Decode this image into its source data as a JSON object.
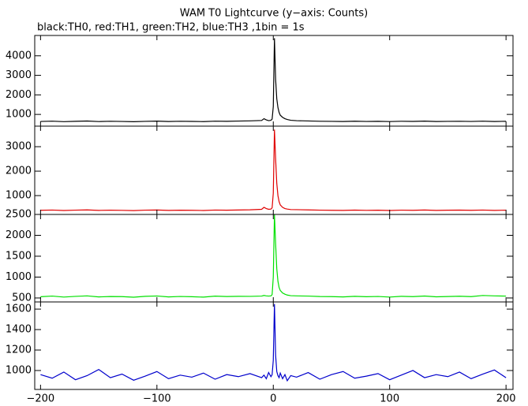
{
  "chart_data": [
    {
      "type": "line",
      "title": "WAM T0 Lightcurve (y−axis: Counts)",
      "subtitle": "black:TH0, red:TH1, green:TH2, blue:TH3 ,1bin = 1s",
      "x": [
        -200,
        -190,
        -180,
        -170,
        -160,
        -150,
        -140,
        -130,
        -120,
        -110,
        -100,
        -90,
        -80,
        -70,
        -60,
        -50,
        -40,
        -30,
        -20,
        -10,
        -8,
        -6,
        -4,
        -2,
        -1,
        0,
        1,
        2,
        3,
        4,
        5,
        6,
        8,
        10,
        12,
        15,
        20,
        30,
        40,
        50,
        60,
        70,
        80,
        90,
        100,
        110,
        120,
        130,
        140,
        150,
        160,
        170,
        180,
        190,
        200
      ],
      "series": [
        {
          "name": "TH0",
          "color": "#000000",
          "values": [
            640,
            655,
            630,
            648,
            662,
            635,
            650,
            640,
            628,
            645,
            658,
            637,
            650,
            642,
            633,
            655,
            648,
            660,
            670,
            690,
            780,
            720,
            680,
            700,
            760,
            1400,
            4900,
            2800,
            1800,
            1350,
            1100,
            960,
            850,
            780,
            740,
            700,
            680,
            665,
            650,
            645,
            638,
            652,
            640,
            647,
            635,
            650,
            642,
            658,
            636,
            645,
            650,
            640,
            655,
            638,
            648
          ]
        }
      ],
      "xlim": [
        -205,
        206
      ],
      "xticks": [
        {
          "value": -200,
          "label": "−200"
        },
        {
          "value": -100,
          "label": "−100"
        },
        0,
        100,
        200
      ],
      "ylim": [
        400,
        5040
      ],
      "yticks": [
        1000,
        2000,
        3000,
        4000
      ]
    },
    {
      "type": "line",
      "x": [
        -200,
        -190,
        -180,
        -170,
        -160,
        -150,
        -140,
        -130,
        -120,
        -110,
        -100,
        -90,
        -80,
        -70,
        -60,
        -50,
        -40,
        -30,
        -20,
        -10,
        -8,
        -6,
        -4,
        -2,
        -1,
        0,
        1,
        2,
        3,
        4,
        5,
        6,
        8,
        10,
        12,
        15,
        20,
        30,
        40,
        50,
        60,
        70,
        80,
        90,
        100,
        110,
        120,
        130,
        140,
        150,
        160,
        170,
        180,
        190,
        200
      ],
      "series": [
        {
          "name": "TH1",
          "color": "#e00000",
          "values": [
            400,
            410,
            392,
            405,
            415,
            396,
            402,
            398,
            388,
            406,
            412,
            395,
            404,
            400,
            391,
            410,
            403,
            412,
            420,
            440,
            520,
            470,
            440,
            450,
            500,
            1100,
            3700,
            2500,
            1500,
            1000,
            750,
            620,
            520,
            470,
            450,
            430,
            425,
            415,
            405,
            400,
            394,
            408,
            398,
            404,
            392,
            406,
            399,
            412,
            395,
            402,
            408,
            400,
            410,
            396,
            404
          ]
        }
      ],
      "xlim": [
        -205,
        206
      ],
      "xticks": [
        {
          "value": -200,
          "label": "−200"
        },
        {
          "value": -100,
          "label": "−100"
        },
        0,
        100,
        200
      ],
      "ylim": [
        230,
        3840
      ],
      "yticks": [
        1000,
        2000,
        3000
      ]
    },
    {
      "type": "line",
      "x": [
        -200,
        -190,
        -180,
        -170,
        -160,
        -150,
        -140,
        -130,
        -120,
        -110,
        -100,
        -90,
        -80,
        -70,
        -60,
        -50,
        -40,
        -30,
        -20,
        -10,
        -8,
        -6,
        -4,
        -2,
        -1,
        0,
        1,
        2,
        3,
        4,
        5,
        6,
        8,
        10,
        12,
        15,
        20,
        30,
        40,
        50,
        60,
        70,
        80,
        90,
        100,
        110,
        120,
        130,
        140,
        150,
        160,
        170,
        180,
        190,
        200
      ],
      "series": [
        {
          "name": "TH2",
          "color": "#00e000",
          "values": [
            530,
            545,
            522,
            538,
            550,
            525,
            535,
            532,
            518,
            540,
            548,
            526,
            536,
            530,
            520,
            544,
            535,
            540,
            538,
            545,
            560,
            550,
            545,
            550,
            580,
            1000,
            2500,
            1800,
            1200,
            900,
            750,
            680,
            620,
            590,
            570,
            555,
            550,
            545,
            535,
            532,
            525,
            540,
            530,
            536,
            522,
            540,
            532,
            546,
            528,
            535,
            542,
            533,
            560,
            550,
            545
          ]
        }
      ],
      "xlim": [
        -205,
        206
      ],
      "xticks": [
        {
          "value": -200,
          "label": "−200"
        },
        {
          "value": -100,
          "label": "−100"
        },
        0,
        100,
        200
      ],
      "ylim": [
        405,
        2500
      ],
      "yticks": [
        500,
        1000,
        1500,
        2000,
        2500
      ]
    },
    {
      "type": "line",
      "x": [
        -200,
        -190,
        -180,
        -170,
        -160,
        -150,
        -140,
        -130,
        -120,
        -110,
        -100,
        -90,
        -80,
        -70,
        -60,
        -50,
        -40,
        -30,
        -20,
        -10,
        -8,
        -6,
        -4,
        -2,
        -1,
        0,
        1,
        2,
        3,
        4,
        5,
        6,
        8,
        10,
        12,
        15,
        20,
        30,
        40,
        50,
        60,
        70,
        80,
        90,
        100,
        110,
        120,
        130,
        140,
        150,
        160,
        170,
        180,
        190,
        200
      ],
      "series": [
        {
          "name": "TH3",
          "color": "#0000cc",
          "values": [
            960,
            925,
            985,
            910,
            950,
            1010,
            930,
            965,
            905,
            945,
            990,
            920,
            955,
            935,
            975,
            915,
            960,
            940,
            970,
            930,
            955,
            920,
            980,
            940,
            960,
            1100,
            1650,
            1150,
            990,
            950,
            930,
            975,
            920,
            960,
            900,
            950,
            935,
            980,
            915,
            960,
            990,
            925,
            945,
            970,
            910,
            955,
            1000,
            930,
            960,
            940,
            985,
            920,
            965,
            1005,
            930
          ]
        }
      ],
      "xlim": [
        -205,
        206
      ],
      "xticks": [
        {
          "value": -200,
          "label": "−200"
        },
        {
          "value": -100,
          "label": "−100"
        },
        0,
        100,
        200
      ],
      "ylim": [
        815,
        1670
      ],
      "yticks": [
        1000,
        1200,
        1400,
        1600
      ]
    }
  ]
}
